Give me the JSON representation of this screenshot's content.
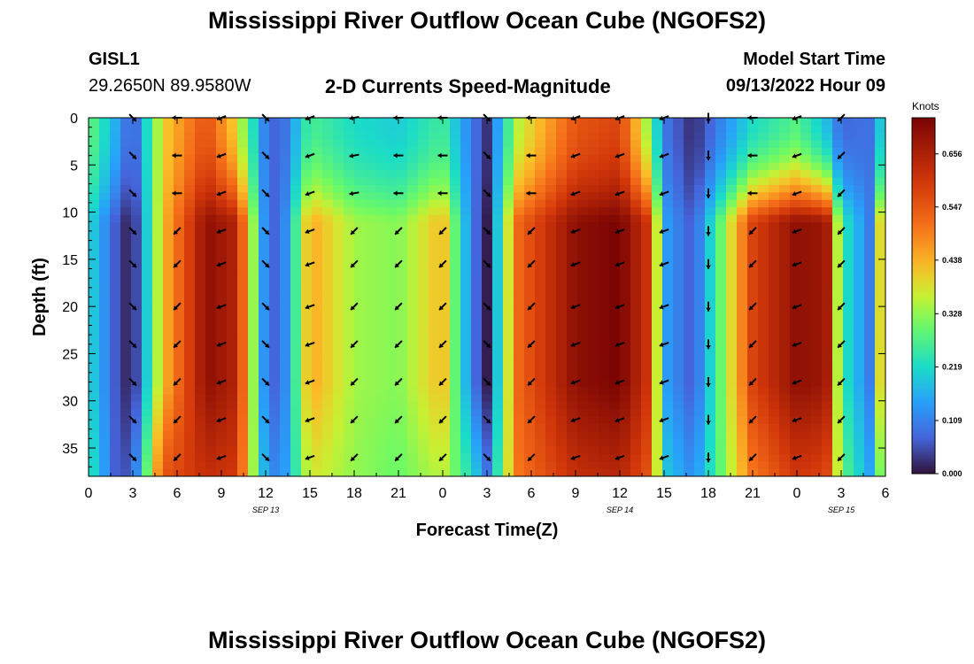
{
  "page": {
    "title_top": "Mississippi River Outflow Ocean Cube (NGOFS2)",
    "title_bottom": "Mississippi River Outflow Ocean Cube (NGOFS2)",
    "station_id": "GISL1",
    "coordinates": "29.2650N  89.9580W",
    "plot_title": "2-D Currents Speed-Magnitude",
    "model_start_label": "Model Start Time",
    "model_start_value": "09/13/2022 Hour 09"
  },
  "chart_data": {
    "type": "heatmap",
    "title": "2-D Currents Speed-Magnitude",
    "xlabel": "Forecast Time(Z)",
    "ylabel": "Depth (ft)",
    "x_range_hours": [
      0,
      54
    ],
    "y_range_ft": [
      0,
      38
    ],
    "x_ticks": [
      "0",
      "3",
      "6",
      "9",
      "12",
      "15",
      "18",
      "21",
      "0",
      "3",
      "6",
      "9",
      "12",
      "15",
      "18",
      "21",
      "0",
      "3",
      "6"
    ],
    "y_ticks": [
      "0",
      "5",
      "10",
      "15",
      "20",
      "25",
      "30",
      "35"
    ],
    "date_labels": [
      {
        "text": "SEP 13",
        "hour": 12
      },
      {
        "text": "SEP 14",
        "hour": 36
      },
      {
        "text": "SEP 15",
        "hour": 51
      }
    ],
    "colorbar": {
      "unit": "Knots",
      "ticks": [
        "0.656",
        "0.547",
        "0.438",
        "0.328",
        "0.219",
        "0.109",
        "0.000"
      ],
      "range": [
        0,
        0.73
      ]
    },
    "speed_profile_hours": [
      0,
      2,
      3,
      5,
      8,
      10,
      12,
      13,
      15,
      18,
      21,
      24,
      26,
      27,
      29,
      33,
      36,
      38,
      39,
      41,
      45,
      48,
      50,
      51,
      53,
      54
    ],
    "speed_profile_surface": [
      0.3,
      0.15,
      0.05,
      0.4,
      0.56,
      0.4,
      0.1,
      0.06,
      0.27,
      0.22,
      0.2,
      0.26,
      0.1,
      0.03,
      0.35,
      0.55,
      0.58,
      0.32,
      0.1,
      0.02,
      0.22,
      0.28,
      0.18,
      0.08,
      0.09,
      0.25
    ],
    "speed_profile_mid": [
      0.22,
      0.05,
      0.0,
      0.42,
      0.7,
      0.65,
      0.1,
      0.06,
      0.45,
      0.34,
      0.32,
      0.43,
      0.1,
      0.01,
      0.52,
      0.7,
      0.73,
      0.6,
      0.15,
      0.06,
      0.58,
      0.7,
      0.68,
      0.25,
      0.1,
      0.55
    ],
    "speed_profile_bottom": [
      0.25,
      0.05,
      0.07,
      0.55,
      0.62,
      0.6,
      0.15,
      0.1,
      0.38,
      0.33,
      0.3,
      0.36,
      0.22,
      0.1,
      0.5,
      0.62,
      0.64,
      0.55,
      0.2,
      0.12,
      0.5,
      0.6,
      0.58,
      0.3,
      0.15,
      0.4
    ],
    "vector_depths_ft": [
      0,
      4,
      8,
      12,
      15.5,
      20,
      24,
      28,
      32,
      36
    ],
    "vector_hours": [
      3,
      6,
      9,
      12,
      15,
      18,
      21,
      24,
      27,
      30,
      33,
      36,
      39,
      42,
      45,
      48,
      51
    ],
    "vector_angles_deg": [
      45,
      180,
      160,
      45,
      160,
      170,
      180,
      180,
      45,
      180,
      160,
      160,
      160,
      90,
      180,
      160,
      135
    ]
  }
}
